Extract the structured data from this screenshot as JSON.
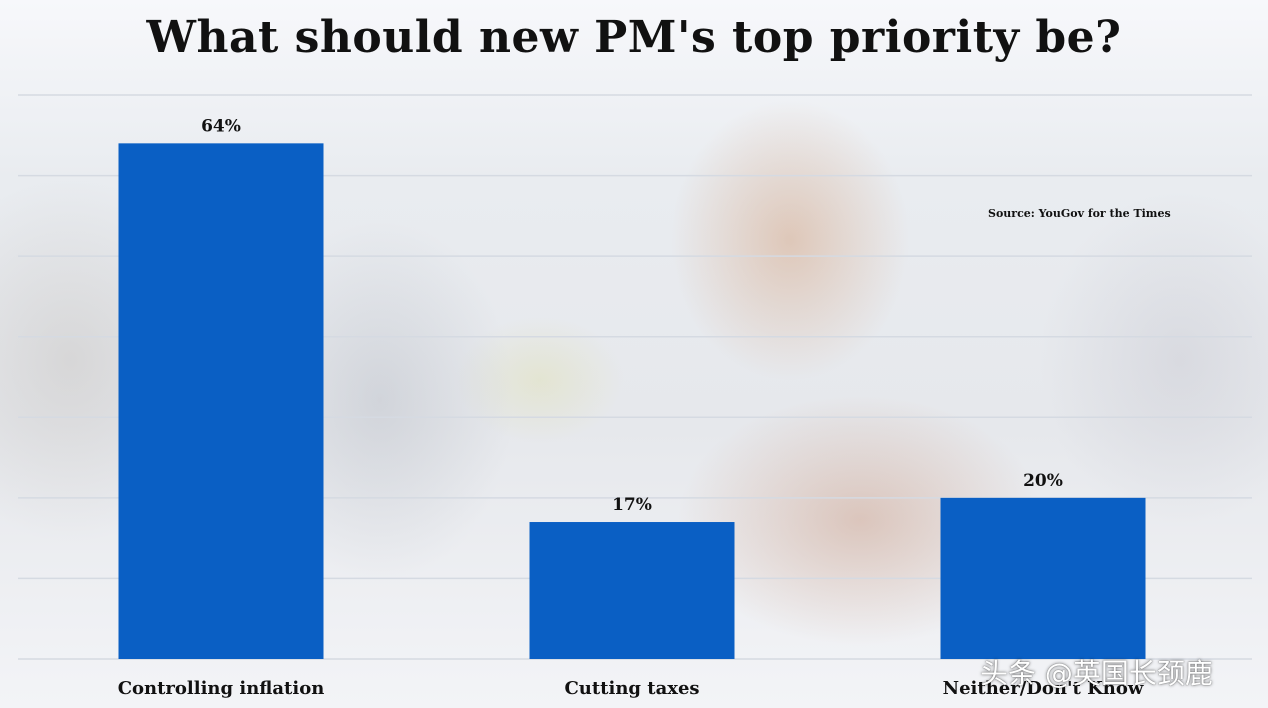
{
  "chart_data": {
    "type": "bar",
    "title": "What should new PM's top priority be?",
    "source": "Source: YouGov for the Times",
    "categories": [
      "Controlling inflation",
      "Cutting taxes",
      "Neither/Don't Know"
    ],
    "values": [
      64,
      17,
      20
    ],
    "value_labels": [
      "64%",
      "17%",
      "20%"
    ],
    "unit": "%",
    "ylim": [
      0,
      70
    ],
    "grid": true,
    "bar_color": "#0a5fc4",
    "grid_color": "#d5dae2"
  },
  "watermark": "头条 @英国长颈鹿"
}
